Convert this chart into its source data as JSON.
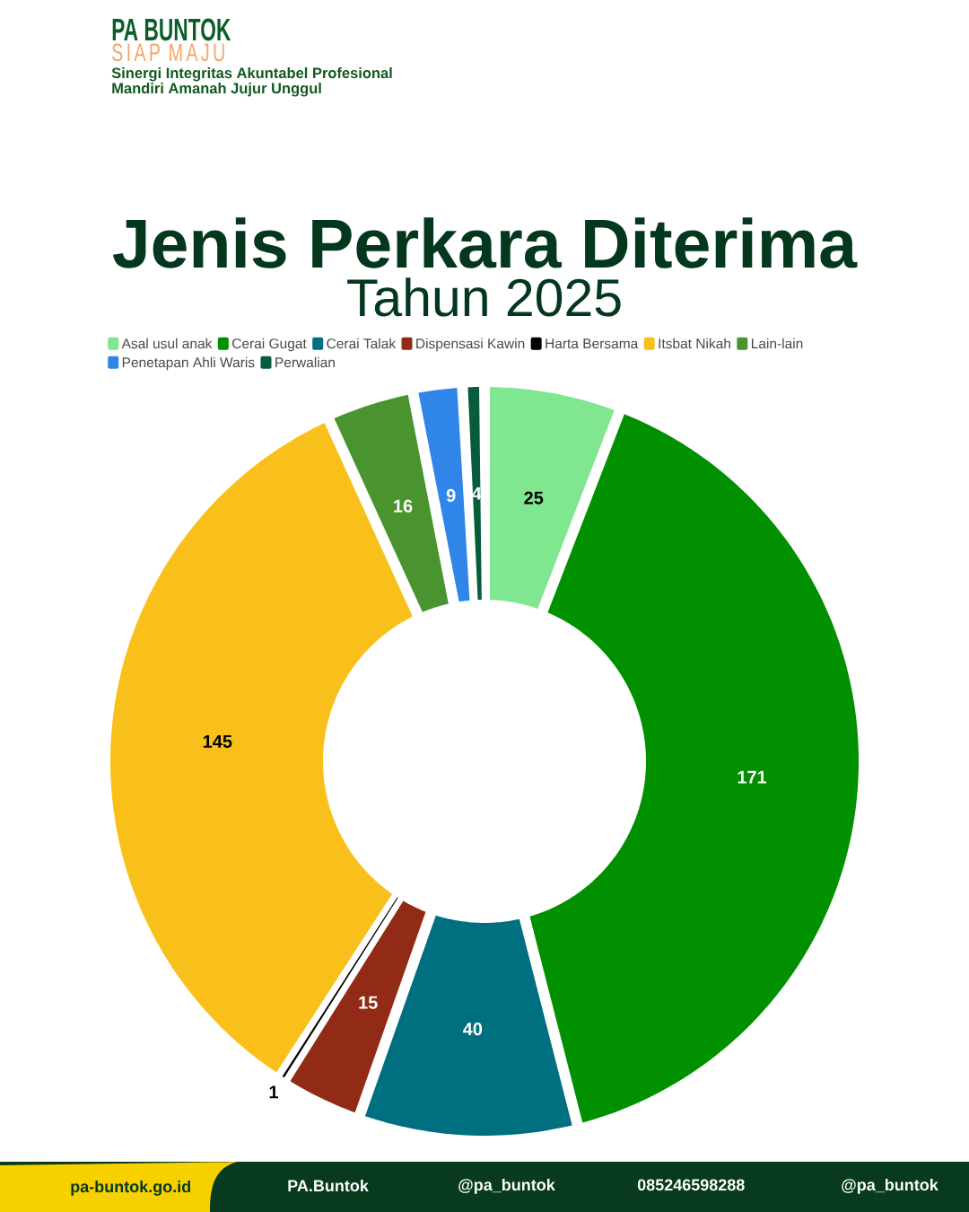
{
  "chart_data": {
    "type": "donut",
    "title": "Jenis Perkara Diterima",
    "subtitle": "Tahun 2025",
    "categories": [
      "Asal usul anak",
      "Cerai Gugat",
      "Cerai Talak",
      "Dispensasi Kawin",
      "Harta Bersama",
      "Itsbat Nikah",
      "Lain-lain",
      "Penetapan Ahli Waris",
      "Perwalian"
    ],
    "values": [
      25,
      171,
      40,
      15,
      1,
      145,
      16,
      9,
      4
    ],
    "colors": [
      "#80e690",
      "#009000",
      "#006f80",
      "#922b15",
      "#000000",
      "#f9c01c",
      "#4a9430",
      "#2f86e8",
      "#065c3b"
    ],
    "data_labels": true,
    "legend": "top",
    "annotations": [
      "PA BUNTOK",
      "SIAP MAJU",
      "Sinergi Integritas Akuntabel Profesional",
      "Mandiri Amanah Jujur Unggul",
      "pa-buntok.go.id",
      "PA.Buntok",
      "@pa_buntok",
      "085246598288",
      "@pa_buntok"
    ]
  }
}
